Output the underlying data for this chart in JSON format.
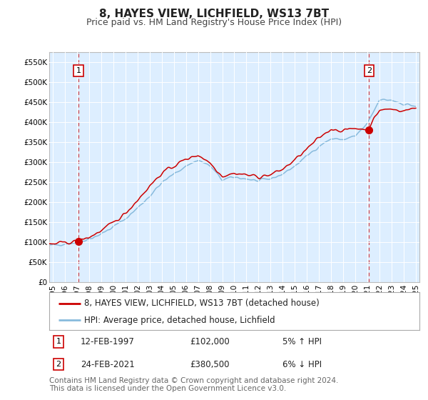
{
  "title": "8, HAYES VIEW, LICHFIELD, WS13 7BT",
  "subtitle": "Price paid vs. HM Land Registry's House Price Index (HPI)",
  "legend_line1": "8, HAYES VIEW, LICHFIELD, WS13 7BT (detached house)",
  "legend_line2": "HPI: Average price, detached house, Lichfield",
  "point1_date": "12-FEB-1997",
  "point1_price": "£102,000",
  "point1_hpi": "5% ↑ HPI",
  "point1_year": 1997.12,
  "point1_value": 102000,
  "point2_date": "24-FEB-2021",
  "point2_price": "£380,500",
  "point2_hpi": "6% ↓ HPI",
  "point2_year": 2021.13,
  "point2_value": 380500,
  "ylim": [
    0,
    575000
  ],
  "xlim_left": 1994.7,
  "xlim_right": 2025.3,
  "yticks": [
    0,
    50000,
    100000,
    150000,
    200000,
    250000,
    300000,
    350000,
    400000,
    450000,
    500000,
    550000
  ],
  "xticks": [
    1995,
    1996,
    1997,
    1998,
    1999,
    2000,
    2001,
    2002,
    2003,
    2004,
    2005,
    2006,
    2007,
    2008,
    2009,
    2010,
    2011,
    2012,
    2013,
    2014,
    2015,
    2016,
    2017,
    2018,
    2019,
    2020,
    2021,
    2022,
    2023,
    2024,
    2025
  ],
  "plot_bg": "#ddeeff",
  "fig_bg": "#ffffff",
  "line_property_color": "#cc0000",
  "line_hpi_color": "#88bbdd",
  "marker_color": "#cc0000",
  "dashed_line_color": "#cc0000",
  "footer": "Contains HM Land Registry data © Crown copyright and database right 2024.\nThis data is licensed under the Open Government Licence v3.0.",
  "title_fontsize": 11,
  "subtitle_fontsize": 9,
  "tick_fontsize": 7.5,
  "legend_fontsize": 8.5,
  "footer_fontsize": 7.5,
  "hpi_ctrl_years": [
    1994.5,
    1995,
    1996,
    1997,
    1998,
    1999,
    2000,
    2001,
    2002,
    2003,
    2004,
    2005,
    2006,
    2007,
    2008,
    2009,
    2010,
    2011,
    2012,
    2013,
    2014,
    2015,
    2016,
    2017,
    2018,
    2019,
    2020,
    2021,
    2022,
    2023,
    2024,
    2025
  ],
  "hpi_ctrl_vals": [
    90000,
    92000,
    96000,
    100000,
    108000,
    120000,
    138000,
    158000,
    185000,
    215000,
    248000,
    270000,
    290000,
    305000,
    290000,
    255000,
    262000,
    258000,
    252000,
    258000,
    270000,
    290000,
    315000,
    340000,
    358000,
    356000,
    365000,
    395000,
    455000,
    455000,
    445000,
    440000
  ],
  "prop_ctrl_years": [
    1994.5,
    1995,
    1996,
    1997,
    1998,
    1999,
    2000,
    2001,
    2002,
    2003,
    2004,
    2005,
    2006,
    2007,
    2008,
    2009,
    2010,
    2011,
    2012,
    2013,
    2014,
    2015,
    2016,
    2017,
    2018,
    2019,
    2020,
    2021,
    2022,
    2023,
    2024,
    2025
  ],
  "prop_ctrl_vals": [
    93000,
    95000,
    98000,
    102000,
    112000,
    128000,
    148000,
    172000,
    205000,
    240000,
    272000,
    290000,
    307000,
    318000,
    298000,
    265000,
    272000,
    268000,
    263000,
    268000,
    282000,
    305000,
    332000,
    360000,
    383000,
    378000,
    385000,
    380500,
    430000,
    432000,
    428000,
    435000
  ]
}
